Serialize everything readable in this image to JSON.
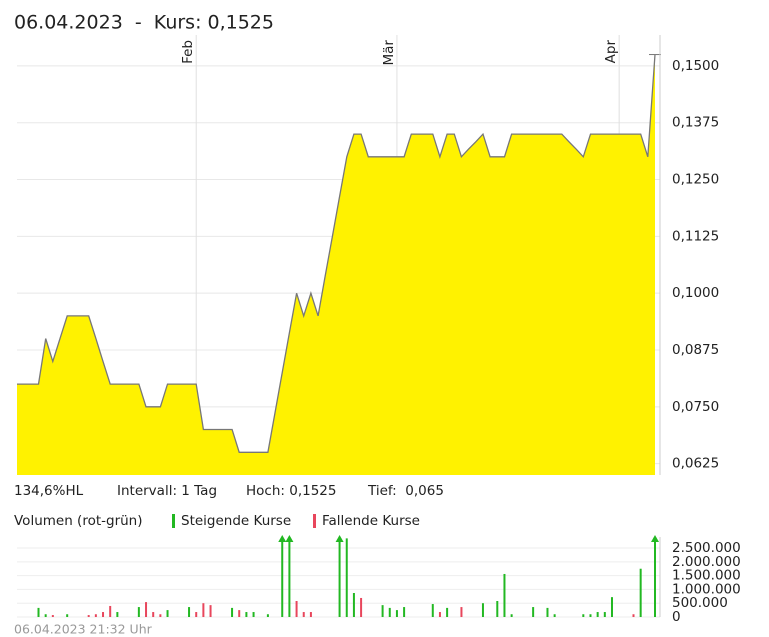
{
  "chart_data": [
    {
      "type": "area",
      "title": "06.04.2023  -  Kurs: 0,1525",
      "color": "#fff200",
      "line_color": "#777777",
      "grid": true,
      "stats": [
        "134,6%HL",
        "Intervall: 1 Tag",
        "Hoch: 0,1525",
        "Tief:  0,065"
      ],
      "categories": [
        null,
        null,
        null,
        null,
        null,
        null,
        null,
        null,
        null,
        null,
        null,
        null,
        null,
        null,
        null,
        null,
        null,
        null,
        null,
        null,
        null,
        null,
        null,
        null,
        null,
        "Feb",
        null,
        null,
        null,
        null,
        null,
        null,
        null,
        null,
        null,
        null,
        null,
        null,
        null,
        null,
        null,
        null,
        null,
        null,
        null,
        null,
        null,
        null,
        null,
        null,
        null,
        null,
        null,
        "Mär",
        null,
        null,
        null,
        null,
        null,
        null,
        null,
        null,
        null,
        null,
        null,
        null,
        null,
        null,
        null,
        null,
        null,
        null,
        null,
        null,
        null,
        null,
        null,
        null,
        null,
        null,
        null,
        null,
        null,
        null,
        "Apr",
        null,
        null,
        null,
        null,
        null
      ],
      "values": [
        0.08,
        0.08,
        0.08,
        0.08,
        0.09,
        0.085,
        0.09,
        0.095,
        0.095,
        0.095,
        0.095,
        0.09,
        0.085,
        0.08,
        0.08,
        0.08,
        0.08,
        0.08,
        0.075,
        0.075,
        0.075,
        0.08,
        0.08,
        0.08,
        0.08,
        0.08,
        0.07,
        0.07,
        0.07,
        0.07,
        0.07,
        0.065,
        0.065,
        0.065,
        0.065,
        0.065,
        0.0738,
        0.0825,
        0.0913,
        0.1,
        0.095,
        0.1,
        0.095,
        0.1038,
        0.1125,
        0.1213,
        0.13,
        0.135,
        0.135,
        0.13,
        0.13,
        0.13,
        0.13,
        0.13,
        0.13,
        0.135,
        0.135,
        0.135,
        0.135,
        0.13,
        0.135,
        0.135,
        0.13,
        0.1317,
        0.1333,
        0.135,
        0.13,
        0.13,
        0.13,
        0.135,
        0.135,
        0.135,
        0.135,
        0.135,
        0.135,
        0.135,
        0.135,
        0.1333,
        0.1317,
        0.13,
        0.135,
        0.135,
        0.135,
        0.135,
        0.135,
        0.135,
        0.135,
        0.135,
        0.13,
        0.1525
      ],
      "ylim": [
        0.06,
        0.1546
      ],
      "yticks": [
        {
          "value": 0.0625,
          "label": "0,0625"
        },
        {
          "value": 0.075,
          "label": "0,0750"
        },
        {
          "value": 0.0875,
          "label": "0,0875"
        },
        {
          "value": 0.1,
          "label": "0,1000"
        },
        {
          "value": 0.1125,
          "label": "0,1125"
        },
        {
          "value": 0.125,
          "label": "0,1250"
        },
        {
          "value": 0.1375,
          "label": "0,1375"
        },
        {
          "value": 0.15,
          "label": "0,1500"
        }
      ]
    },
    {
      "type": "bar",
      "title": "Volumen (rot-grün)",
      "grid": true,
      "ylim": [
        0,
        2900000
      ],
      "yticks": [
        {
          "value": 0,
          "label": "0"
        },
        {
          "value": 500000,
          "label": "500.000"
        },
        {
          "value": 1000000,
          "label": "1.000.000"
        },
        {
          "value": 1500000,
          "label": "1.500.000"
        },
        {
          "value": 2000000,
          "label": "2.000.000"
        },
        {
          "value": 2500000,
          "label": "2.500.000"
        }
      ],
      "series": [
        {
          "name": "Steigende Kurse",
          "color": "#22b822",
          "values": [
            null,
            null,
            null,
            330000,
            100000,
            null,
            null,
            100000,
            null,
            null,
            null,
            null,
            null,
            null,
            180000,
            null,
            null,
            360000,
            null,
            null,
            null,
            250000,
            null,
            null,
            360000,
            null,
            null,
            null,
            null,
            null,
            330000,
            null,
            180000,
            180000,
            null,
            100000,
            null,
            3000000,
            3000000,
            null,
            null,
            null,
            null,
            null,
            null,
            3000000,
            2850000,
            870000,
            null,
            null,
            null,
            430000,
            330000,
            250000,
            360000,
            null,
            null,
            null,
            470000,
            null,
            330000,
            null,
            null,
            null,
            null,
            500000,
            null,
            580000,
            1560000,
            100000,
            null,
            null,
            360000,
            null,
            330000,
            100000,
            null,
            null,
            null,
            100000,
            100000,
            180000,
            180000,
            720000,
            null,
            null,
            null,
            1750000,
            null,
            3000000
          ]
        },
        {
          "name": "Fallende Kurse",
          "color": "#e8465c",
          "values": [
            null,
            null,
            null,
            null,
            null,
            70000,
            null,
            null,
            null,
            null,
            70000,
            100000,
            180000,
            400000,
            null,
            null,
            null,
            null,
            540000,
            180000,
            100000,
            null,
            null,
            null,
            null,
            180000,
            500000,
            430000,
            null,
            null,
            null,
            250000,
            null,
            null,
            null,
            null,
            null,
            null,
            null,
            580000,
            180000,
            180000,
            null,
            null,
            null,
            null,
            null,
            null,
            690000,
            null,
            null,
            null,
            null,
            null,
            null,
            null,
            null,
            null,
            null,
            180000,
            null,
            null,
            360000,
            null,
            null,
            null,
            null,
            null,
            null,
            null,
            null,
            null,
            null,
            null,
            null,
            null,
            null,
            null,
            null,
            null,
            null,
            null,
            null,
            null,
            null,
            null,
            100000,
            null,
            null,
            null
          ]
        }
      ]
    }
  ],
  "footer": "06.04.2023 21:32 Uhr"
}
